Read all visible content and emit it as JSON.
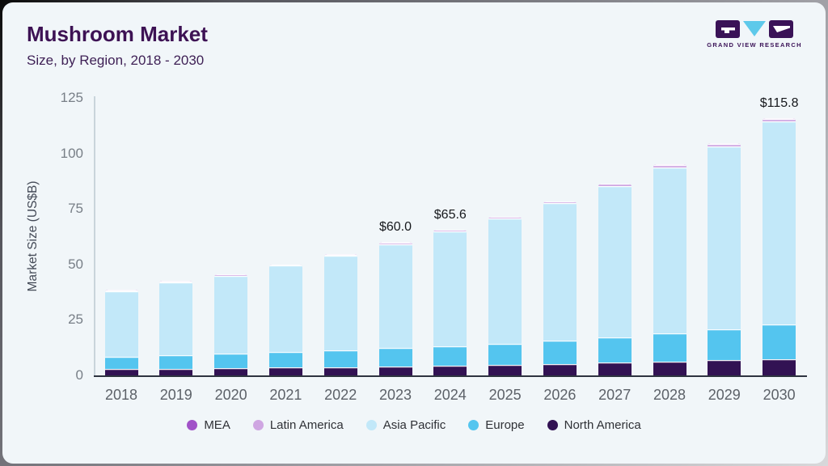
{
  "header": {
    "title": "Mushroom Market",
    "subtitle": "Size, by Region, 2018 - 2030"
  },
  "logo": {
    "brand": "GRAND VIEW RESEARCH",
    "mark_purple": "#3a1257",
    "mark_blue": "#5ec9ea"
  },
  "chart_data": {
    "type": "bar",
    "stacked": true,
    "title": "Mushroom Market",
    "subtitle": "Size, by Region, 2018 - 2030",
    "ylabel": "Market Size (US$B)",
    "xlabel": "",
    "ylim": [
      0,
      125
    ],
    "yticks": [
      0,
      25,
      50,
      75,
      100,
      125
    ],
    "grid": false,
    "legend_position": "bottom",
    "categories": [
      "2018",
      "2019",
      "2020",
      "2021",
      "2022",
      "2023",
      "2024",
      "2025",
      "2026",
      "2027",
      "2028",
      "2029",
      "2030"
    ],
    "series": [
      {
        "name": "North America",
        "color": "#321253",
        "values": [
          2.9,
          3.1,
          3.3,
          3.5,
          3.8,
          4.1,
          4.5,
          4.8,
          5.2,
          5.7,
          6.2,
          6.8,
          7.4
        ]
      },
      {
        "name": "Europe",
        "color": "#54c5ef",
        "values": [
          5.6,
          6.0,
          6.5,
          7.0,
          7.6,
          8.2,
          8.8,
          9.5,
          10.5,
          11.5,
          12.6,
          13.9,
          15.4
        ]
      },
      {
        "name": "Asia Pacific",
        "color": "#c2e8f9",
        "values": [
          29.5,
          32.8,
          35.2,
          38.9,
          42.4,
          46.9,
          51.4,
          56.3,
          61.8,
          68.2,
          75.0,
          82.4,
          91.5
        ]
      },
      {
        "name": "Latin America",
        "color": "#cfa6e2",
        "values": [
          0.4,
          0.5,
          0.5,
          0.5,
          0.6,
          0.7,
          0.8,
          0.8,
          0.9,
          0.9,
          1.0,
          1.2,
          1.3
        ]
      },
      {
        "name": "MEA",
        "color": "#a152c8",
        "values": [
          0.1,
          0.1,
          0.1,
          0.1,
          0.1,
          0.1,
          0.1,
          0.1,
          0.1,
          0.2,
          0.2,
          0.2,
          0.2
        ]
      }
    ],
    "totals": [
      38.5,
      42.5,
      45.6,
      50.0,
      54.5,
      60.0,
      65.6,
      71.5,
      78.5,
      86.5,
      95.0,
      104.5,
      115.8
    ],
    "annotations": [
      {
        "category": "2023",
        "label": "$60.0"
      },
      {
        "category": "2024",
        "label": "$65.6"
      },
      {
        "category": "2030",
        "label": "$115.8"
      }
    ],
    "legend": [
      "MEA",
      "Latin America",
      "Asia Pacific",
      "Europe",
      "North America"
    ]
  }
}
